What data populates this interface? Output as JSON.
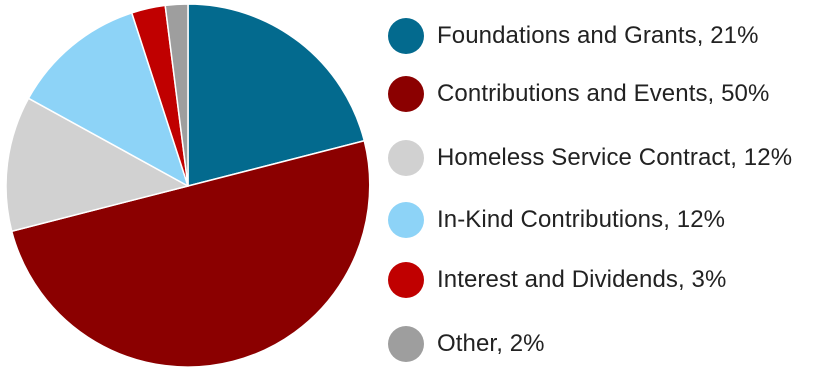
{
  "chart_data": {
    "type": "pie",
    "title": "",
    "start_angle_deg": 0,
    "direction": "clockwise",
    "slices": [
      {
        "label": "Foundations and Grants, 21%",
        "category": "Foundations and Grants",
        "value": 21,
        "color": "#036a8e"
      },
      {
        "label": "Contributions and Events, 50%",
        "category": "Contributions and Events",
        "value": 50,
        "color": "#8b0000"
      },
      {
        "label": "Homeless Service Contract, 12%",
        "category": "Homeless Service Contract",
        "value": 12,
        "color": "#d1d1d1"
      },
      {
        "label": "In-Kind Contributions, 12%",
        "category": "In-Kind Contributions",
        "value": 12,
        "color": "#8dd3f7"
      },
      {
        "label": "Interest and Dividends, 3%",
        "category": "Interest and Dividends",
        "value": 3,
        "color": "#c00000"
      },
      {
        "label": "Other, 2%",
        "category": "Other",
        "value": 2,
        "color": "#9e9e9e"
      }
    ],
    "legend_position": "right"
  }
}
